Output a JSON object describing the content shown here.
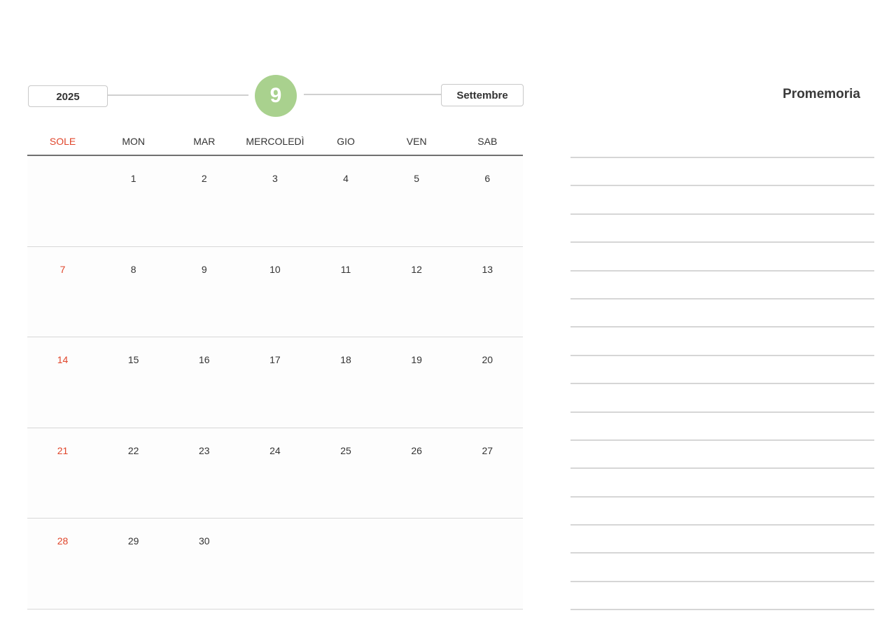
{
  "header": {
    "year": "2025",
    "month_number": "9",
    "month_name": "Settembre"
  },
  "colors": {
    "accent": "#a9d18e",
    "sunday": "#e0452a"
  },
  "weekdays": [
    "SOLE",
    "MON",
    "MAR",
    "MERCOLEDÌ",
    "GIO",
    "VEN",
    "SAB"
  ],
  "weeks": [
    [
      "",
      "1",
      "2",
      "3",
      "4",
      "5",
      "6"
    ],
    [
      "7",
      "8",
      "9",
      "10",
      "11",
      "12",
      "13"
    ],
    [
      "14",
      "15",
      "16",
      "17",
      "18",
      "19",
      "20"
    ],
    [
      "21",
      "22",
      "23",
      "24",
      "25",
      "26",
      "27"
    ],
    [
      "28",
      "29",
      "30",
      "",
      "",
      "",
      ""
    ]
  ],
  "notes": {
    "title": "Promemoria",
    "line_count": 17
  }
}
